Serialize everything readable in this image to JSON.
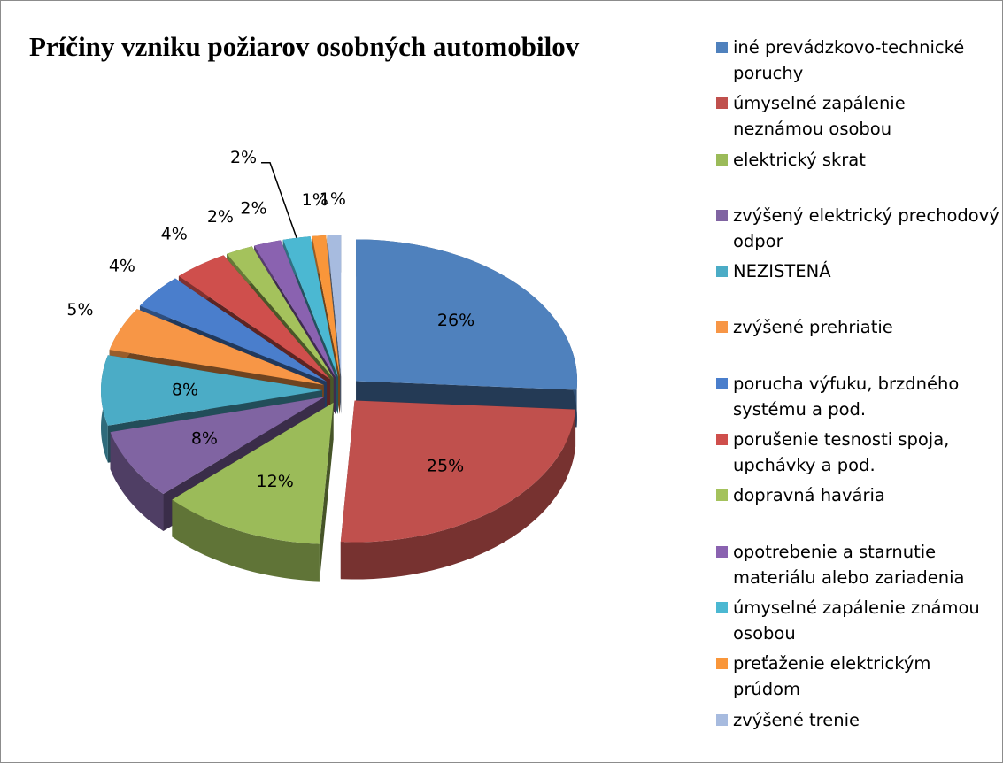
{
  "chart_data": {
    "type": "pie",
    "title": "Príčiny vzniku požiarov osobných automobilov",
    "categories": [
      "iné prevádzkovo-technické poruchy",
      "úmyselné zapálenie neznámou osobou",
      "elektrický skrat",
      "zvýšený elektrický prechodový odpor",
      "NEZISTENÁ",
      "zvýšené prehriatie",
      "porucha výfuku, brzdného systému a pod.",
      "porušenie tesnosti spoja, upchávky a pod.",
      "dopravná havária",
      "opotrebenie a starnutie materiálu alebo zariadenia",
      "úmyselné zapálenie známou osobou",
      "preťaženie elektrickým prúdom",
      "zvýšené trenie"
    ],
    "values": [
      26,
      25,
      12,
      8,
      8,
      5,
      4,
      4,
      2,
      2,
      2,
      1,
      1
    ],
    "value_labels": [
      "26%",
      "25%",
      "12%",
      "8%",
      "8%",
      "5%",
      "4%",
      "4%",
      "2%",
      "2%",
      "2%",
      "1%",
      "1%"
    ],
    "colors": [
      "#4f81bd",
      "#c0504d",
      "#9bbb59",
      "#8064a2",
      "#4bacc6",
      "#f79646",
      "#4a7ecc",
      "#cf4f4c",
      "#a4c25c",
      "#8a62b0",
      "#4bb8d2",
      "#f9963a",
      "#a7bbdf"
    ],
    "legend": "right"
  }
}
